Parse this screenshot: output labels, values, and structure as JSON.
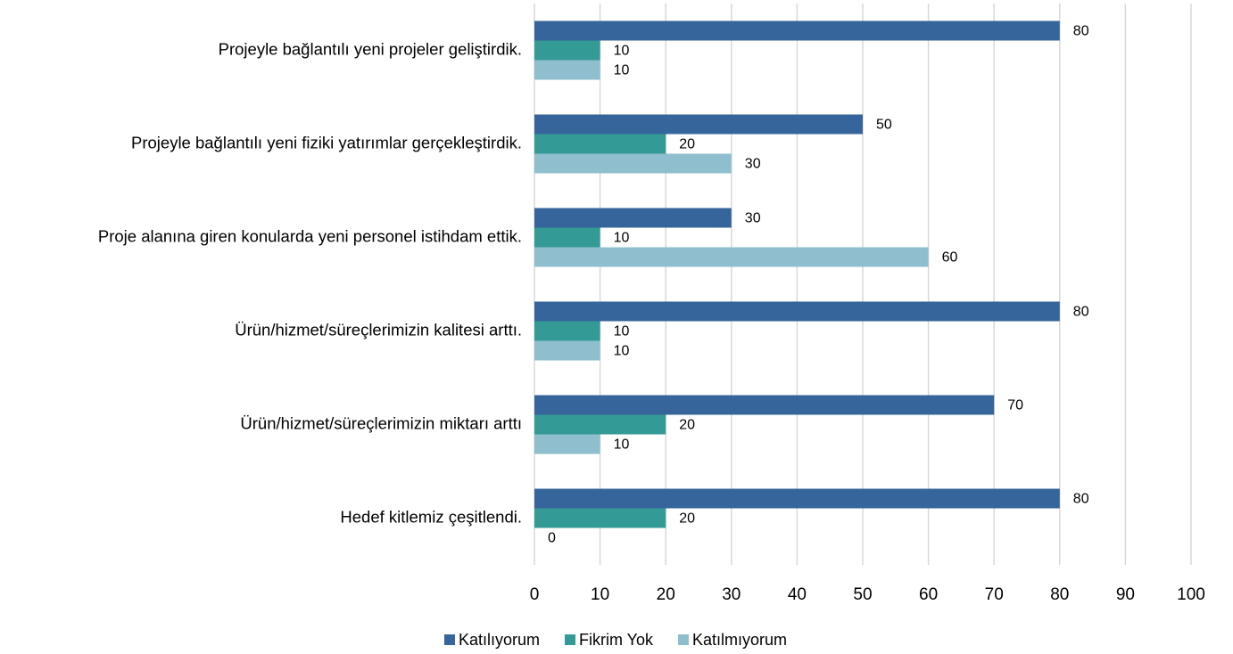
{
  "chart_data": {
    "type": "bar",
    "orientation": "horizontal",
    "categories": [
      "Projeyle bağlantılı yeni projeler geliştirdik.",
      "Projeyle bağlantılı yeni fiziki yatırımlar gerçekleştirdik.",
      "Proje alanına giren konularda yeni personel istihdam ettik.",
      "Ürün/hizmet/süreçlerimizin kalitesi arttı.",
      "Ürün/hizmet/süreçlerimizin miktarı arttı",
      "Hedef kitlemiz çeşitlendi."
    ],
    "series": [
      {
        "name": "Katılıyorum",
        "color": "#35659a",
        "values": [
          80,
          50,
          30,
          80,
          70,
          80
        ]
      },
      {
        "name": "Fikrim Yok",
        "color": "#349a96",
        "values": [
          10,
          20,
          10,
          10,
          20,
          20
        ]
      },
      {
        "name": "Katılmıyorum",
        "color": "#8fbfcf",
        "values": [
          10,
          30,
          60,
          10,
          10,
          0
        ]
      }
    ],
    "xlim": [
      0,
      100
    ],
    "xticks": [
      0,
      10,
      20,
      30,
      40,
      50,
      60,
      70,
      80,
      90,
      100
    ],
    "grid": true,
    "legend": "bottom"
  }
}
